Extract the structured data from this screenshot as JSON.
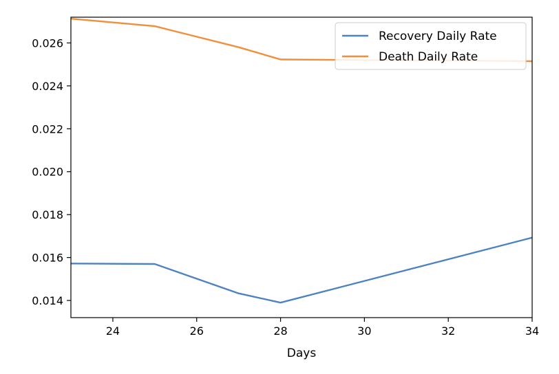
{
  "chart_data": {
    "type": "line",
    "title": "",
    "xlabel": "Days",
    "ylabel": "",
    "xlim": [
      23,
      34
    ],
    "ylim": [
      0.0132,
      0.0272
    ],
    "xticks": [
      24,
      26,
      28,
      30,
      32,
      34
    ],
    "xtick_labels": [
      "24",
      "26",
      "28",
      "30",
      "32",
      "34"
    ],
    "yticks": [
      0.014,
      0.016,
      0.018,
      0.02,
      0.022,
      0.024,
      0.026
    ],
    "ytick_labels": [
      "0.014",
      "0.016",
      "0.018",
      "0.020",
      "0.022",
      "0.024",
      "0.026"
    ],
    "grid": false,
    "legend_position": "top-right",
    "series": [
      {
        "name": "Recovery Daily Rate",
        "color": "#4c82c0",
        "x": [
          23,
          25,
          27,
          28,
          34
        ],
        "y": [
          0.01572,
          0.0157,
          0.01433,
          0.0139,
          0.01693
        ]
      },
      {
        "name": "Death Daily Rate",
        "color": "#f28e3a",
        "x": [
          23,
          25,
          27,
          28,
          34
        ],
        "y": [
          0.02713,
          0.02678,
          0.0258,
          0.02523,
          0.02515
        ]
      }
    ]
  }
}
